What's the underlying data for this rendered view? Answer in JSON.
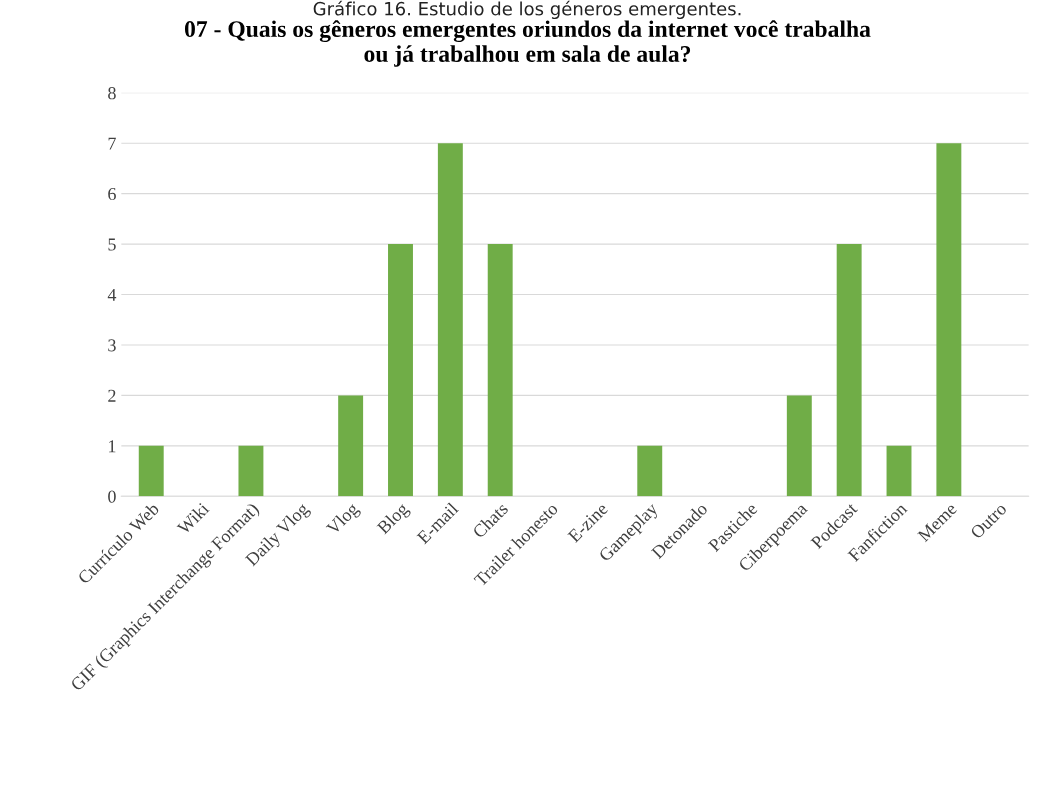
{
  "chart_data": {
    "type": "bar",
    "title": "07 - Quais os gêneros emergentes oriundos da internet você trabalha\nou já trabalhou em sala de aula?",
    "annotations": [
      "Gráfico 16. Estudio de los géneros emergentes."
    ],
    "categories": [
      "Currículo Web",
      "Wiki",
      "GIF (Graphics Interchange Format)",
      "Daily Vlog",
      "Vlog",
      "Blog",
      "E-mail",
      "Chats",
      "Trailer honesto",
      "E-zine",
      "Gameplay",
      "Detonado",
      "Pastiche",
      "Ciberpoema",
      "Podcast",
      "Fanfiction",
      "Meme",
      "Outro"
    ],
    "values": [
      1,
      0,
      1,
      0,
      2,
      5,
      7,
      5,
      0,
      0,
      1,
      0,
      0,
      2,
      5,
      1,
      7,
      0
    ],
    "color": "#70ad47",
    "ylim": [
      0,
      8
    ],
    "yticks": [
      0,
      1,
      2,
      3,
      4,
      5,
      6,
      7,
      8
    ],
    "grid": "y"
  }
}
